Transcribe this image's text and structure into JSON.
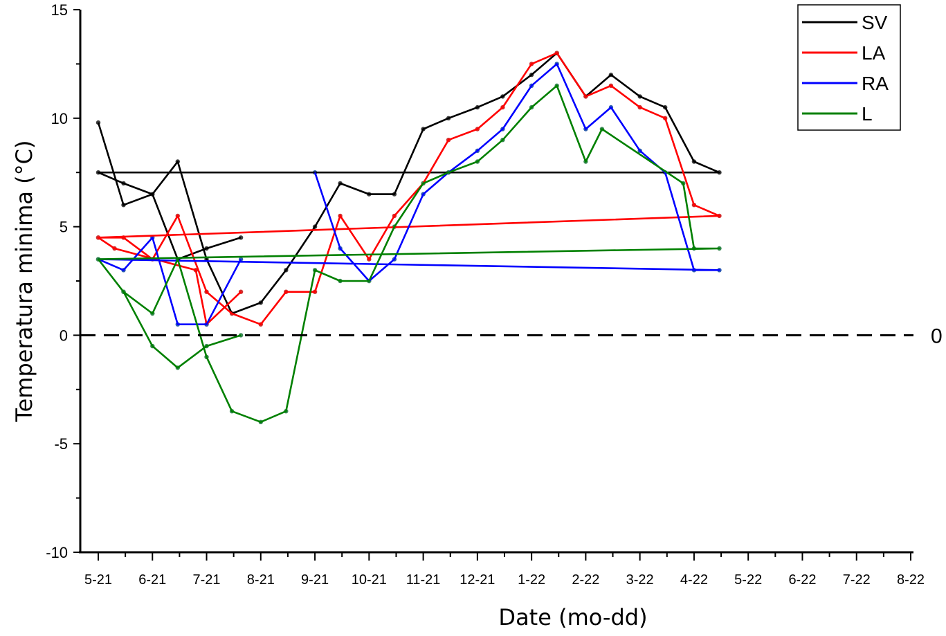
{
  "chart_data": {
    "type": "line",
    "title": "",
    "xlabel": "Date (mo-dd)",
    "ylabel": "Temperatura minima (°C)",
    "x_tick_labels": [
      "5-21",
      "6-21",
      "7-21",
      "8-21",
      "9-21",
      "10-21",
      "11-21",
      "12-21",
      "1-22",
      "2-22",
      "3-22",
      "4-22",
      "5-22",
      "6-22",
      "7-22",
      "8-22"
    ],
    "y_ticks": [
      15,
      10,
      5,
      0,
      -5,
      -10
    ],
    "y_tick_labels": [
      "15",
      "10",
      "5",
      "0",
      "-5",
      "-10"
    ],
    "ylim": [
      -10,
      15
    ],
    "reference_line": {
      "y": 0,
      "style": "dashed",
      "label": "0"
    },
    "legend_position": "top-right",
    "grid": false,
    "series": [
      {
        "name": "SV",
        "color": "#000000",
        "dot_color": "#404040",
        "x": [
          "05-01",
          "05-15",
          "06-01",
          "06-15",
          "07-01",
          "07-15",
          "08-01",
          "08-15",
          "09-01",
          "09-15",
          "10-01",
          "10-15",
          "11-01",
          "11-15",
          "12-01",
          "12-15",
          "01-01",
          "01-15",
          "02-01",
          "02-15",
          "03-01",
          "03-15",
          "04-01",
          "04-15",
          "05-01",
          "05-15",
          "06-01",
          "06-15",
          "07-01",
          "07-20"
        ],
        "values": [
          9.8,
          6.0,
          6.5,
          8.0,
          3.5,
          1.0,
          1.5,
          3.0,
          5.0,
          7.0,
          6.5,
          6.5,
          9.5,
          10.0,
          10.5,
          11.0,
          12.0,
          13.0,
          11.0,
          12.0,
          11.0,
          10.5,
          8.0,
          7.5,
          7.5,
          7.0,
          6.5,
          3.5,
          4.0,
          4.5
        ]
      },
      {
        "name": "LA",
        "color": "#ff0000",
        "dot_color": "#d03030",
        "x": [
          "05-01",
          "05-15",
          "06-01",
          "06-15",
          "07-01",
          "07-15",
          "08-01",
          "08-15",
          "09-01",
          "09-15",
          "10-01",
          "10-15",
          "11-01",
          "11-15",
          "12-01",
          "12-15",
          "01-01",
          "01-15",
          "02-01",
          "02-15",
          "03-01",
          "03-15",
          "04-01",
          "04-15",
          "05-01",
          "05-10",
          "06-25",
          "07-01",
          "07-20"
        ],
        "values": [
          4.5,
          4.5,
          3.5,
          5.5,
          2.0,
          1.0,
          0.5,
          2.0,
          2.0,
          5.5,
          3.5,
          5.5,
          7.0,
          9.0,
          9.5,
          10.5,
          12.5,
          13.0,
          11.0,
          11.5,
          10.5,
          10.0,
          6.0,
          5.5,
          4.5,
          4.0,
          3.0,
          0.5,
          2.0
        ]
      },
      {
        "name": "RA",
        "color": "#0000ff",
        "dot_color": "#3060b0",
        "x": [
          "09-01",
          "09-15",
          "10-01",
          "10-15",
          "11-01",
          "11-15",
          "12-01",
          "12-15",
          "01-01",
          "01-15",
          "02-01",
          "02-15",
          "03-01",
          "03-15",
          "04-01",
          "04-15",
          "05-01",
          "05-15",
          "06-01",
          "06-15",
          "07-01",
          "07-20"
        ],
        "values": [
          7.5,
          4.0,
          2.5,
          3.5,
          6.5,
          7.5,
          8.5,
          9.5,
          11.5,
          12.5,
          9.5,
          10.5,
          8.5,
          7.5,
          3.0,
          3.0,
          3.5,
          3.0,
          4.5,
          0.5,
          0.5,
          3.5
        ]
      },
      {
        "name": "L",
        "color": "#008000",
        "dot_color": "#3a8a55",
        "x": [
          "05-01",
          "05-15",
          "06-01",
          "06-15",
          "07-01",
          "07-15",
          "08-01",
          "08-15",
          "09-01",
          "09-15",
          "10-01",
          "10-15",
          "11-01",
          "11-15",
          "12-01",
          "12-15",
          "01-01",
          "01-15",
          "02-01",
          "02-10",
          "03-25",
          "04-01",
          "04-15",
          "05-01",
          "05-15",
          "06-01",
          "06-15",
          "07-01",
          "07-20"
        ],
        "values": [
          3.5,
          2.0,
          1.0,
          3.5,
          -1.0,
          -3.5,
          -4.0,
          -3.5,
          3.0,
          2.5,
          2.5,
          5.0,
          7.0,
          7.5,
          8.0,
          9.0,
          10.5,
          11.5,
          8.0,
          9.5,
          7.0,
          4.0,
          4.0,
          3.5,
          2.0,
          -0.5,
          -1.5,
          -0.5,
          0.0
        ]
      }
    ]
  }
}
